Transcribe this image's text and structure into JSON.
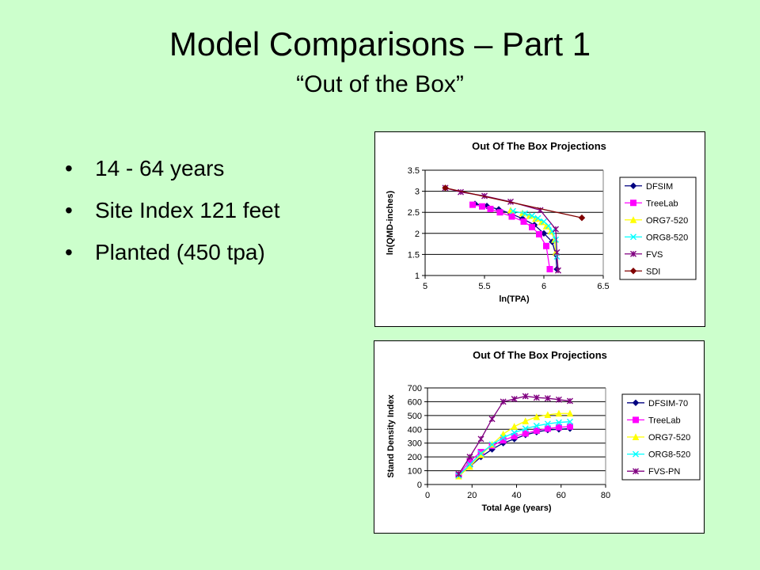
{
  "slide": {
    "title": "Model Comparisons – Part 1",
    "subtitle": "“Out of the Box”",
    "bullets": [
      "14 - 64 years",
      "Site Index 121 feet",
      "Planted (450 tpa)"
    ]
  },
  "chart_data": [
    {
      "type": "line",
      "title": "Out Of The Box Projections",
      "xlabel": "ln(TPA)",
      "ylabel": "ln(QMD-inches)",
      "xlim": [
        5,
        6.5
      ],
      "ylim": [
        1,
        3.5
      ],
      "xticks": [
        5,
        5.5,
        6,
        6.5
      ],
      "yticks": [
        1,
        1.5,
        2,
        2.5,
        3,
        3.5
      ],
      "grid": "horizontal",
      "legend": "right",
      "series": [
        {
          "name": "DFSIM",
          "color": "#000080",
          "marker": "diamond",
          "x": [
            5.42,
            5.52,
            5.62,
            5.72,
            5.82,
            5.92,
            6.0,
            6.07,
            6.1,
            6.11
          ],
          "y": [
            2.7,
            2.65,
            2.57,
            2.47,
            2.35,
            2.2,
            2.0,
            1.8,
            1.5,
            1.15
          ]
        },
        {
          "name": "TreeLab",
          "color": "#ff00ff",
          "marker": "square",
          "x": [
            5.4,
            5.48,
            5.55,
            5.63,
            5.73,
            5.83,
            5.9,
            5.96,
            6.02,
            6.05
          ],
          "y": [
            2.68,
            2.64,
            2.58,
            2.5,
            2.4,
            2.28,
            2.15,
            1.98,
            1.7,
            1.15
          ]
        },
        {
          "name": "ORG7-520",
          "color": "#ffff00",
          "marker": "triangle",
          "x": [
            5.72,
            5.82,
            5.88,
            5.93,
            5.98,
            6.02,
            6.06,
            6.09,
            6.1
          ],
          "y": [
            2.55,
            2.48,
            2.42,
            2.35,
            2.27,
            2.17,
            2.05,
            1.85,
            1.55
          ]
        },
        {
          "name": "ORG8-520",
          "color": "#00ffff",
          "marker": "x",
          "x": [
            5.74,
            5.84,
            5.9,
            5.95,
            6.0,
            6.04,
            6.07,
            6.1,
            6.11
          ],
          "y": [
            2.53,
            2.47,
            2.42,
            2.36,
            2.28,
            2.18,
            2.05,
            1.85,
            1.45
          ]
        },
        {
          "name": "FVS",
          "color": "#800080",
          "marker": "star",
          "x": [
            5.17,
            5.3,
            5.5,
            5.72,
            5.97,
            6.1,
            6.11,
            6.12
          ],
          "y": [
            3.08,
            2.98,
            2.89,
            2.75,
            2.55,
            2.1,
            1.55,
            1.12
          ]
        },
        {
          "name": "SDI",
          "color": "#800000",
          "marker": "diamond",
          "x": [
            5.17,
            6.32
          ],
          "y": [
            3.08,
            2.37
          ]
        }
      ]
    },
    {
      "type": "line",
      "title": "Out Of The Box Projections",
      "xlabel": "Total Age (years)",
      "ylabel": "Stand Density Index",
      "xlim": [
        0,
        80
      ],
      "ylim": [
        0,
        700
      ],
      "xticks": [
        0,
        20,
        40,
        60,
        80
      ],
      "yticks": [
        0,
        100,
        200,
        300,
        400,
        500,
        600,
        700
      ],
      "grid": "horizontal",
      "legend": "right",
      "series": [
        {
          "name": "DFSIM-70",
          "color": "#000080",
          "marker": "diamond",
          "x": [
            14,
            19,
            24,
            29,
            34,
            39,
            44,
            49,
            54,
            59,
            64
          ],
          "y": [
            65,
            130,
            200,
            255,
            300,
            330,
            360,
            380,
            395,
            400,
            405
          ]
        },
        {
          "name": "TreeLab",
          "color": "#ff00ff",
          "marker": "square",
          "x": [
            14,
            19,
            24,
            29,
            34,
            39,
            44,
            49,
            54,
            59,
            64
          ],
          "y": [
            70,
            170,
            235,
            280,
            320,
            350,
            370,
            390,
            405,
            415,
            420
          ]
        },
        {
          "name": "ORG7-520",
          "color": "#ffff00",
          "marker": "triangle",
          "x": [
            14,
            19,
            24,
            29,
            34,
            39,
            44,
            49,
            54,
            59,
            64
          ],
          "y": [
            60,
            130,
            215,
            290,
            365,
            420,
            460,
            490,
            505,
            515,
            515
          ]
        },
        {
          "name": "ORG8-520",
          "color": "#00ffff",
          "marker": "x",
          "x": [
            14,
            19,
            24,
            29,
            34,
            39,
            44,
            49,
            54,
            59,
            64
          ],
          "y": [
            65,
            145,
            225,
            290,
            340,
            375,
            405,
            425,
            440,
            450,
            455
          ]
        },
        {
          "name": "FVS-PN",
          "color": "#800080",
          "marker": "star",
          "x": [
            14,
            19,
            24,
            29,
            34,
            39,
            44,
            49,
            54,
            59,
            64
          ],
          "y": [
            75,
            200,
            330,
            475,
            600,
            620,
            640,
            630,
            625,
            615,
            605
          ]
        }
      ]
    }
  ]
}
